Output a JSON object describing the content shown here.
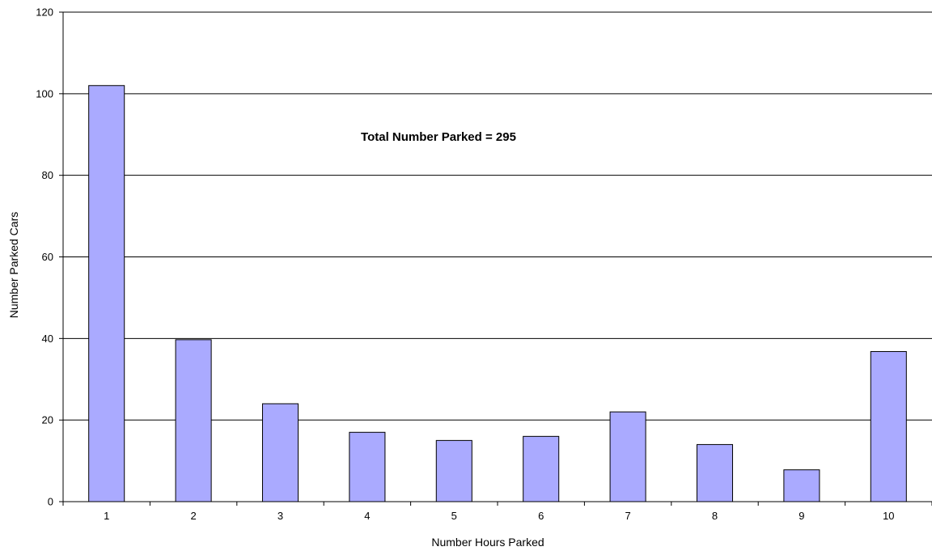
{
  "chart_data": {
    "type": "bar",
    "categories": [
      "1",
      "2",
      "3",
      "4",
      "5",
      "6",
      "7",
      "8",
      "9",
      "10"
    ],
    "values": [
      102,
      39.7,
      24,
      17,
      15,
      16,
      22,
      14,
      7.8,
      36.8
    ],
    "xlabel": "Number Hours Parked",
    "ylabel": "Number Parked Cars",
    "ylim": [
      0,
      120
    ],
    "yticks": [
      0,
      20,
      40,
      60,
      80,
      100,
      120
    ],
    "grid": true,
    "legend": "none",
    "annotation": "Total Number Parked = 295",
    "bar_color": "#aaaaff",
    "bar_stroke": "#000000"
  }
}
